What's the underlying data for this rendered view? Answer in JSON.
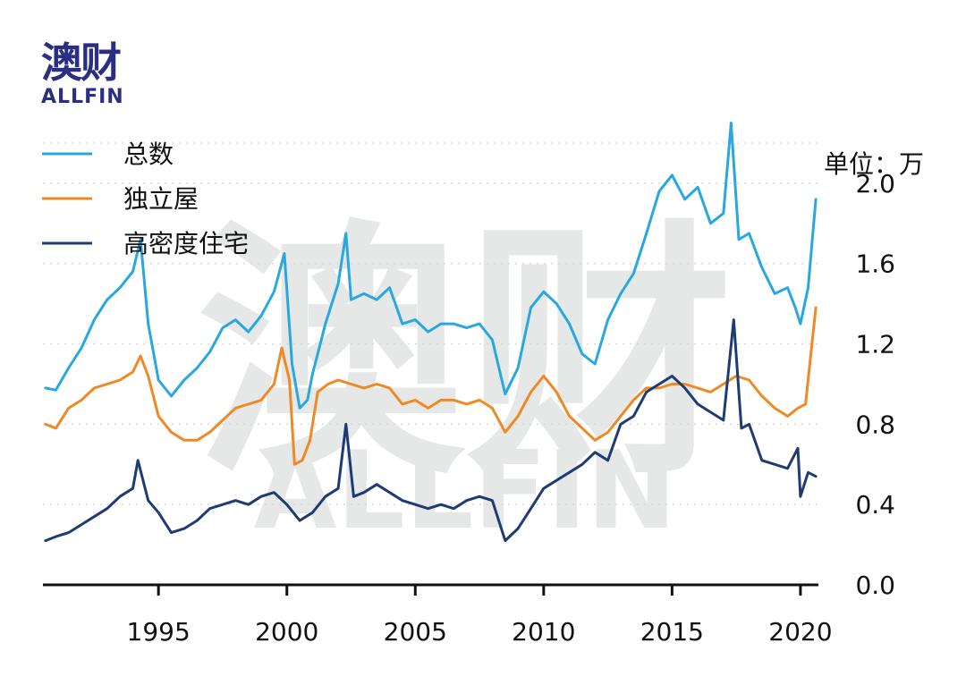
{
  "brand": {
    "name_cn": "澳财",
    "name_en": "ALLFIN"
  },
  "watermark": {
    "cn": "澳财",
    "en": "ALLFIN"
  },
  "chart_data": {
    "type": "line",
    "unit_label": "单位：万",
    "grid": "horizontal-dotted",
    "legend_position": "top-left",
    "xlim": [
      1990.5,
      2020.7
    ],
    "ylim": [
      0.0,
      2.2
    ],
    "x_ticks": [
      1995,
      2000,
      2005,
      2010,
      2015,
      2020
    ],
    "y_ticks": [
      0.0,
      0.4,
      0.8,
      1.2,
      1.6,
      2.0
    ],
    "y_tick_labels": [
      "0.0",
      "0.4",
      "0.8",
      "1.2",
      "1.6",
      "2.0"
    ],
    "series": [
      {
        "name": "总数",
        "color": "#29a8df",
        "x": [
          1990.6,
          1991.0,
          1991.5,
          1992.0,
          1992.5,
          1993.0,
          1993.5,
          1994.0,
          1994.3,
          1994.6,
          1995.0,
          1995.5,
          1996.0,
          1996.5,
          1997.0,
          1997.5,
          1998.0,
          1998.5,
          1999.0,
          1999.5,
          1999.9,
          2000.2,
          2000.5,
          2000.8,
          2001.0,
          2001.5,
          2002.0,
          2002.3,
          2002.5,
          2003.0,
          2003.5,
          2004.0,
          2004.5,
          2005.0,
          2005.5,
          2006.0,
          2006.5,
          2007.0,
          2007.5,
          2008.0,
          2008.5,
          2009.0,
          2009.5,
          2010.0,
          2010.5,
          2011.0,
          2011.5,
          2012.0,
          2012.5,
          2013.0,
          2013.5,
          2014.0,
          2014.5,
          2015.0,
          2015.5,
          2016.0,
          2016.5,
          2017.0,
          2017.3,
          2017.6,
          2018.0,
          2018.5,
          2019.0,
          2019.5,
          2019.8,
          2020.0,
          2020.3,
          2020.6
        ],
        "y": [
          0.98,
          0.97,
          1.08,
          1.18,
          1.32,
          1.42,
          1.48,
          1.56,
          1.72,
          1.3,
          1.02,
          0.94,
          1.02,
          1.08,
          1.16,
          1.28,
          1.32,
          1.26,
          1.34,
          1.46,
          1.65,
          1.1,
          0.88,
          0.92,
          1.05,
          1.3,
          1.5,
          1.75,
          1.42,
          1.45,
          1.42,
          1.48,
          1.3,
          1.32,
          1.26,
          1.3,
          1.3,
          1.28,
          1.3,
          1.22,
          0.95,
          1.08,
          1.38,
          1.46,
          1.4,
          1.3,
          1.15,
          1.1,
          1.32,
          1.45,
          1.55,
          1.75,
          1.96,
          2.04,
          1.92,
          1.98,
          1.8,
          1.85,
          2.3,
          1.72,
          1.75,
          1.58,
          1.45,
          1.48,
          1.38,
          1.3,
          1.48,
          1.92
        ]
      },
      {
        "name": "独立屋",
        "color": "#ee8a26",
        "x": [
          1990.6,
          1991.0,
          1991.5,
          1992.0,
          1992.5,
          1993.0,
          1993.5,
          1994.0,
          1994.3,
          1994.6,
          1995.0,
          1995.5,
          1996.0,
          1996.5,
          1997.0,
          1997.5,
          1998.0,
          1998.5,
          1999.0,
          1999.5,
          1999.8,
          2000.1,
          2000.3,
          2000.6,
          2000.9,
          2001.2,
          2001.6,
          2002.0,
          2002.5,
          2003.0,
          2003.5,
          2004.0,
          2004.5,
          2005.0,
          2005.5,
          2006.0,
          2006.5,
          2007.0,
          2007.5,
          2008.0,
          2008.5,
          2009.0,
          2009.5,
          2010.0,
          2010.5,
          2011.0,
          2011.5,
          2012.0,
          2012.5,
          2013.0,
          2013.5,
          2014.0,
          2014.5,
          2015.0,
          2015.5,
          2016.0,
          2016.5,
          2017.0,
          2017.5,
          2018.0,
          2018.5,
          2019.0,
          2019.5,
          2019.9,
          2020.2,
          2020.6
        ],
        "y": [
          0.8,
          0.78,
          0.88,
          0.92,
          0.98,
          1.0,
          1.02,
          1.06,
          1.14,
          1.04,
          0.84,
          0.76,
          0.72,
          0.72,
          0.76,
          0.82,
          0.88,
          0.9,
          0.92,
          1.0,
          1.18,
          1.02,
          0.6,
          0.62,
          0.72,
          0.96,
          1.0,
          1.02,
          1.0,
          0.98,
          1.0,
          0.98,
          0.9,
          0.92,
          0.88,
          0.92,
          0.92,
          0.9,
          0.92,
          0.88,
          0.76,
          0.84,
          0.96,
          1.04,
          0.96,
          0.84,
          0.78,
          0.72,
          0.76,
          0.84,
          0.92,
          0.98,
          0.98,
          1.0,
          1.0,
          0.98,
          0.96,
          1.0,
          1.04,
          1.02,
          0.94,
          0.88,
          0.84,
          0.88,
          0.9,
          1.38
        ]
      },
      {
        "name": "高密度住宅",
        "color": "#1f3b73",
        "x": [
          1990.6,
          1991.0,
          1991.5,
          1992.0,
          1992.5,
          1993.0,
          1993.5,
          1994.0,
          1994.2,
          1994.6,
          1995.0,
          1995.5,
          1996.0,
          1996.5,
          1997.0,
          1997.5,
          1998.0,
          1998.5,
          1999.0,
          1999.5,
          2000.0,
          2000.5,
          2001.0,
          2001.5,
          2002.0,
          2002.3,
          2002.6,
          2003.0,
          2003.5,
          2004.0,
          2004.5,
          2005.0,
          2005.5,
          2006.0,
          2006.5,
          2007.0,
          2007.5,
          2008.0,
          2008.5,
          2009.0,
          2009.5,
          2010.0,
          2010.5,
          2011.0,
          2011.5,
          2012.0,
          2012.5,
          2013.0,
          2013.5,
          2014.0,
          2014.5,
          2015.0,
          2015.5,
          2016.0,
          2016.5,
          2017.0,
          2017.4,
          2017.7,
          2018.0,
          2018.5,
          2019.0,
          2019.5,
          2019.9,
          2020.0,
          2020.3,
          2020.6
        ],
        "y": [
          0.22,
          0.24,
          0.26,
          0.3,
          0.34,
          0.38,
          0.44,
          0.48,
          0.62,
          0.42,
          0.36,
          0.26,
          0.28,
          0.32,
          0.38,
          0.4,
          0.42,
          0.4,
          0.44,
          0.46,
          0.4,
          0.32,
          0.36,
          0.44,
          0.48,
          0.8,
          0.44,
          0.46,
          0.5,
          0.46,
          0.42,
          0.4,
          0.38,
          0.4,
          0.38,
          0.42,
          0.44,
          0.42,
          0.22,
          0.28,
          0.38,
          0.48,
          0.52,
          0.56,
          0.6,
          0.66,
          0.62,
          0.8,
          0.84,
          0.96,
          1.0,
          1.04,
          0.98,
          0.9,
          0.86,
          0.82,
          1.32,
          0.78,
          0.8,
          0.62,
          0.6,
          0.58,
          0.68,
          0.44,
          0.56,
          0.54
        ]
      }
    ]
  }
}
